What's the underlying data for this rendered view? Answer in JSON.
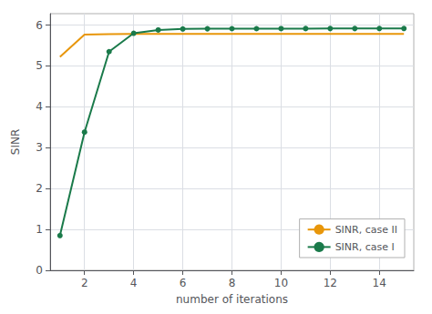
{
  "chart_data": {
    "type": "line",
    "x": [
      1,
      2,
      3,
      4,
      5,
      6,
      7,
      8,
      9,
      10,
      11,
      12,
      13,
      14,
      15
    ],
    "series": [
      {
        "name": "SINR, case II",
        "color": "#e8960a",
        "marker": "none",
        "values": [
          5.22,
          5.77,
          5.78,
          5.785,
          5.785,
          5.785,
          5.785,
          5.785,
          5.785,
          5.785,
          5.785,
          5.785,
          5.785,
          5.785,
          5.785
        ]
      },
      {
        "name": "SINR, case I",
        "color": "#1a7a4a",
        "marker": "circle",
        "values": [
          0.85,
          3.38,
          5.35,
          5.8,
          5.88,
          5.905,
          5.91,
          5.912,
          5.913,
          5.914,
          5.915,
          5.916,
          5.916,
          5.917,
          5.917
        ]
      }
    ],
    "xlabel": "number of iterations",
    "ylabel": "SINR",
    "xlim": [
      0.6,
      15.4
    ],
    "ylim": [
      0,
      6.28
    ],
    "xticks": [
      2,
      4,
      6,
      8,
      10,
      12,
      14
    ],
    "yticks": [
      0,
      1,
      2,
      3,
      4,
      5,
      6
    ],
    "grid": true,
    "legend": "lower right"
  }
}
